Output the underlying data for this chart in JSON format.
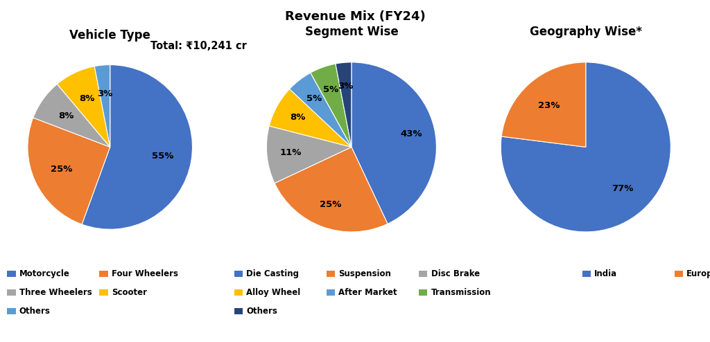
{
  "title": "Revenue Mix (FY24)",
  "subtitle": "Total: ₹10,241 cr",
  "pie1": {
    "title": "Vehicle Type",
    "labels": [
      "Motorcycle",
      "Four Wheelers",
      "Three Wheelers",
      "Scooter",
      "Others"
    ],
    "values": [
      55,
      25,
      8,
      8,
      3
    ],
    "colors": [
      "#4472C4",
      "#ED7D31",
      "#A5A5A5",
      "#FFC000",
      "#5B9BD5"
    ],
    "pct_labels": [
      "55%",
      "25%",
      "8%",
      "8%",
      "3%"
    ],
    "startangle": 90
  },
  "pie2": {
    "title": "Segment Wise",
    "labels": [
      "Die Casting",
      "Suspension",
      "Disc Brake",
      "Alloy Wheel",
      "After Market",
      "Transmission",
      "Others"
    ],
    "values": [
      43,
      25,
      11,
      8,
      5,
      5,
      3
    ],
    "colors": [
      "#4472C4",
      "#ED7D31",
      "#A5A5A5",
      "#FFC000",
      "#5B9BD5",
      "#70AD47",
      "#264478"
    ],
    "pct_labels": [
      "43%",
      "25%",
      "11%",
      "8%",
      "5%",
      "5%",
      "3%"
    ],
    "startangle": 90
  },
  "pie3": {
    "title": "Geography Wise*",
    "labels": [
      "India",
      "Europe"
    ],
    "values": [
      77,
      23
    ],
    "colors": [
      "#4472C4",
      "#ED7D31"
    ],
    "pct_labels": [
      "77%",
      "23%"
    ],
    "startangle": 90
  },
  "legend1": {
    "entries": [
      {
        "label": "Motorcycle",
        "color": "#4472C4"
      },
      {
        "label": "Four Wheelers",
        "color": "#ED7D31"
      },
      {
        "label": "Three Wheelers",
        "color": "#A5A5A5"
      },
      {
        "label": "Scooter",
        "color": "#FFC000"
      },
      {
        "label": "Others",
        "color": "#5B9BD5"
      }
    ]
  },
  "legend2": {
    "entries": [
      {
        "label": "Die Casting",
        "color": "#4472C4"
      },
      {
        "label": "Suspension",
        "color": "#ED7D31"
      },
      {
        "label": "Disc Brake",
        "color": "#A5A5A5"
      },
      {
        "label": "Alloy Wheel",
        "color": "#FFC000"
      },
      {
        "label": "After Market",
        "color": "#5B9BD5"
      },
      {
        "label": "Transmission",
        "color": "#70AD47"
      },
      {
        "label": "Others",
        "color": "#264478"
      }
    ]
  },
  "legend3": {
    "entries": [
      {
        "label": "India",
        "color": "#4472C4"
      },
      {
        "label": "Europe",
        "color": "#ED7D31"
      }
    ]
  },
  "fig_width": 10.24,
  "fig_height": 4.94,
  "dpi": 100
}
